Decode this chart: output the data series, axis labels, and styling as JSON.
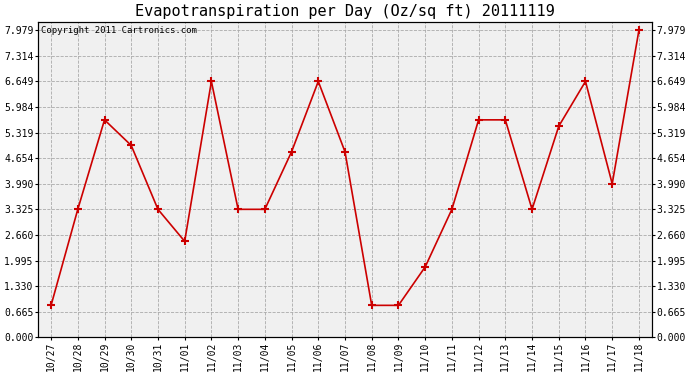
{
  "title": "Evapotranspiration per Day (Oz/sq ft) 20111119",
  "copyright": "Copyright 2011 Cartronics.com",
  "x_labels": [
    "10/27",
    "10/28",
    "10/29",
    "10/30",
    "10/31",
    "11/01",
    "11/02",
    "11/03",
    "11/04",
    "11/05",
    "11/06",
    "11/07",
    "11/08",
    "11/09",
    "11/10",
    "11/11",
    "11/12",
    "11/13",
    "11/14",
    "11/15",
    "11/16",
    "11/17",
    "11/18"
  ],
  "y_values": [
    0.83,
    3.325,
    5.65,
    4.985,
    3.325,
    2.494,
    6.649,
    3.325,
    3.325,
    4.82,
    6.649,
    4.82,
    0.83,
    0.83,
    1.828,
    3.325,
    5.65,
    5.65,
    3.325,
    5.485,
    6.649,
    3.99,
    7.979
  ],
  "line_color": "#cc0000",
  "marker": "+",
  "marker_size": 6,
  "marker_linewidth": 1.5,
  "grid_color": "#aaaaaa",
  "bg_color": "#f0f0f0",
  "yticks": [
    0.0,
    0.665,
    1.33,
    1.995,
    2.66,
    3.325,
    3.99,
    4.654,
    5.319,
    5.984,
    6.649,
    7.314,
    7.979
  ],
  "ymax": 8.2,
  "title_fontsize": 11,
  "tick_fontsize": 7,
  "copyright_fontsize": 6.5
}
